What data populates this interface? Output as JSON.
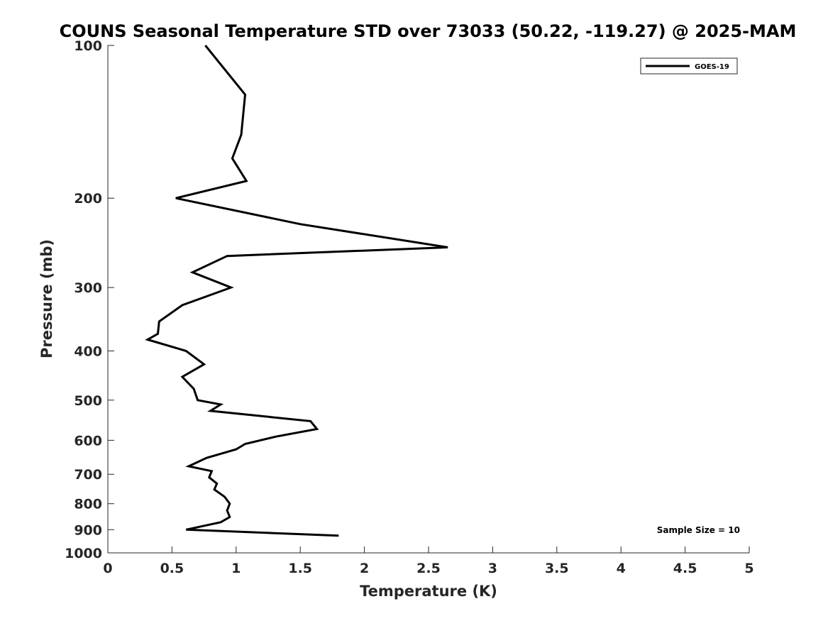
{
  "chart_data": {
    "type": "line",
    "title": "COUNS Seasonal Temperature STD over 73033 (50.22, -119.27) @ 2025-MAM",
    "xlabel": "Temperature (K)",
    "ylabel": "Pressure (mb)",
    "xlim": [
      0,
      5
    ],
    "ylim": [
      100,
      1000
    ],
    "y_scale": "log",
    "y_reversed": true,
    "x_ticks": [
      "0",
      "0.5",
      "1",
      "1.5",
      "2",
      "2.5",
      "3",
      "3.5",
      "4",
      "4.5",
      "5"
    ],
    "y_ticks": [
      "100",
      "200",
      "300",
      "400",
      "500",
      "600",
      "700",
      "800",
      "900",
      "1000"
    ],
    "grid": false,
    "legend_position": "top-right",
    "series": [
      {
        "name": "GOES-19",
        "color": "#000000",
        "points": [
          {
            "x": 0.76,
            "y": 100
          },
          {
            "x": 1.07,
            "y": 125
          },
          {
            "x": 1.04,
            "y": 150
          },
          {
            "x": 0.97,
            "y": 167
          },
          {
            "x": 1.08,
            "y": 185
          },
          {
            "x": 0.53,
            "y": 200
          },
          {
            "x": 1.5,
            "y": 225
          },
          {
            "x": 2.65,
            "y": 250
          },
          {
            "x": 0.93,
            "y": 260
          },
          {
            "x": 0.66,
            "y": 280
          },
          {
            "x": 0.96,
            "y": 300
          },
          {
            "x": 0.58,
            "y": 325
          },
          {
            "x": 0.4,
            "y": 350
          },
          {
            "x": 0.39,
            "y": 370
          },
          {
            "x": 0.31,
            "y": 380
          },
          {
            "x": 0.61,
            "y": 400
          },
          {
            "x": 0.75,
            "y": 425
          },
          {
            "x": 0.58,
            "y": 450
          },
          {
            "x": 0.67,
            "y": 475
          },
          {
            "x": 0.7,
            "y": 500
          },
          {
            "x": 0.88,
            "y": 510
          },
          {
            "x": 0.8,
            "y": 525
          },
          {
            "x": 1.58,
            "y": 550
          },
          {
            "x": 1.63,
            "y": 570
          },
          {
            "x": 1.31,
            "y": 590
          },
          {
            "x": 1.07,
            "y": 610
          },
          {
            "x": 1.0,
            "y": 625
          },
          {
            "x": 0.77,
            "y": 650
          },
          {
            "x": 0.63,
            "y": 675
          },
          {
            "x": 0.81,
            "y": 690
          },
          {
            "x": 0.79,
            "y": 710
          },
          {
            "x": 0.85,
            "y": 730
          },
          {
            "x": 0.83,
            "y": 750
          },
          {
            "x": 0.91,
            "y": 775
          },
          {
            "x": 0.95,
            "y": 800
          },
          {
            "x": 0.93,
            "y": 825
          },
          {
            "x": 0.95,
            "y": 850
          },
          {
            "x": 0.88,
            "y": 870
          },
          {
            "x": 0.61,
            "y": 900
          },
          {
            "x": 1.8,
            "y": 925
          }
        ]
      }
    ],
    "annotations": [
      {
        "text": "Sample Size = 10",
        "position": "bottom-right"
      }
    ]
  }
}
